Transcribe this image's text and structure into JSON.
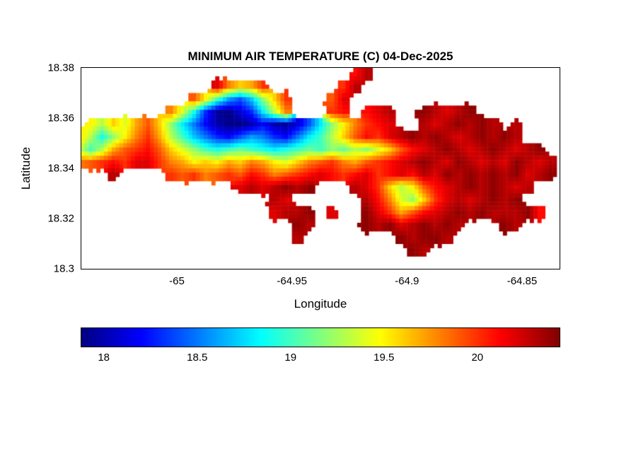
{
  "chart_data": {
    "type": "heatmap",
    "title": "MINIMUM AIR TEMPERATURE (C) 04-Dec-2025",
    "xlabel": "Longitude",
    "ylabel": "Latitude",
    "units": "C",
    "xlim": [
      -65.0415,
      -64.8337
    ],
    "ylim": [
      18.3,
      18.38
    ],
    "xticks": {
      "values": [
        -65,
        -64.95,
        -64.9,
        -64.85
      ],
      "labels": [
        "-65",
        "-64.95",
        "-64.9",
        "-64.85"
      ]
    },
    "yticks": {
      "values": [
        18.38,
        18.36,
        18.34,
        18.32,
        18.3
      ],
      "labels": [
        "18.38",
        "18.36",
        "18.34",
        "18.32",
        "18.3"
      ]
    },
    "colormap": "jet",
    "colorbar": {
      "orientation": "horizontal",
      "min": 17.88,
      "max": 20.44,
      "ticks": [
        18,
        18.5,
        19,
        19.5,
        20
      ],
      "tick_labels": [
        "18",
        "18.5",
        "19",
        "19.5",
        "20"
      ]
    },
    "grid": {
      "lon0": -65.045,
      "dlon": 0.005,
      "lat0": 18.38,
      "dlat": 0.005,
      "ncols": 42,
      "nrows": 16,
      "values": [
        [
          null,
          null,
          null,
          null,
          null,
          null,
          null,
          null,
          null,
          null,
          null,
          null,
          null,
          null,
          null,
          null,
          null,
          null,
          null,
          null,
          null,
          null,
          null,
          null,
          20.1,
          20.3,
          null,
          null,
          null,
          null,
          null,
          null,
          null,
          null,
          null,
          null,
          null,
          null,
          null,
          null,
          null,
          null
        ],
        [
          null,
          null,
          null,
          null,
          null,
          null,
          null,
          null,
          null,
          null,
          null,
          null,
          20.2,
          19.8,
          19.6,
          19.7,
          20.0,
          null,
          null,
          null,
          null,
          null,
          null,
          20.0,
          20.3,
          null,
          null,
          null,
          null,
          null,
          null,
          null,
          null,
          null,
          null,
          null,
          null,
          null,
          null,
          null,
          null,
          null
        ],
        [
          null,
          null,
          null,
          null,
          null,
          null,
          null,
          null,
          null,
          null,
          19.9,
          19.5,
          19.0,
          18.6,
          18.4,
          18.7,
          19.2,
          19.6,
          20.0,
          null,
          null,
          null,
          19.9,
          20.2,
          null,
          null,
          null,
          null,
          null,
          null,
          null,
          null,
          null,
          null,
          null,
          null,
          null,
          null,
          null,
          null,
          null,
          null
        ],
        [
          null,
          null,
          null,
          null,
          null,
          null,
          null,
          null,
          19.8,
          19.4,
          18.9,
          18.3,
          17.95,
          17.9,
          18.1,
          18.3,
          18.8,
          19.3,
          19.8,
          null,
          null,
          null,
          20.0,
          20.1,
          null,
          20.1,
          20.2,
          20.3,
          null,
          null,
          20.4,
          20.3,
          20.2,
          20.3,
          20.4,
          null,
          null,
          null,
          null,
          null,
          null,
          null
        ],
        [
          null,
          19.5,
          19.3,
          19.6,
          19.4,
          19.7,
          19.9,
          19.6,
          19.2,
          18.8,
          18.5,
          18.2,
          18.0,
          17.9,
          17.9,
          18.0,
          18.2,
          18.0,
          17.95,
          18.1,
          18.4,
          18.8,
          19.2,
          19.5,
          19.8,
          20.0,
          20.1,
          20.2,
          null,
          null,
          20.3,
          20.2,
          20.3,
          20.4,
          20.3,
          20.4,
          20.3,
          null,
          20.3,
          null,
          null,
          null
        ],
        [
          19.6,
          19.3,
          18.9,
          19.2,
          19.5,
          19.8,
          20.0,
          19.7,
          19.3,
          19.0,
          18.7,
          18.5,
          18.3,
          18.2,
          18.4,
          18.6,
          18.5,
          18.3,
          18.2,
          18.5,
          18.8,
          19.0,
          19.3,
          19.6,
          19.9,
          20.1,
          20.0,
          20.2,
          20.3,
          20.4,
          20.3,
          20.4,
          20.3,
          20.2,
          20.3,
          20.4,
          20.3,
          20.4,
          20.3,
          null,
          null,
          null
        ],
        [
          19.4,
          19.0,
          19.3,
          19.7,
          19.9,
          20.0,
          20.1,
          19.9,
          19.6,
          19.4,
          19.2,
          19.0,
          18.9,
          19.0,
          19.1,
          19.0,
          18.9,
          18.8,
          18.9,
          19.0,
          19.1,
          19.0,
          19.2,
          19.1,
          19.3,
          19.2,
          19.4,
          19.6,
          19.9,
          20.1,
          20.2,
          20.3,
          20.4,
          20.3,
          20.2,
          20.3,
          20.4,
          20.3,
          20.2,
          20.3,
          20.4,
          null
        ],
        [
          19.8,
          19.9,
          20.0,
          20.1,
          20.0,
          20.2,
          20.2,
          20.0,
          19.8,
          19.7,
          19.5,
          19.6,
          19.5,
          19.7,
          19.6,
          19.8,
          19.7,
          19.5,
          19.4,
          19.6,
          19.8,
          19.9,
          20.0,
          19.8,
          19.7,
          19.9,
          20.0,
          20.1,
          20.2,
          20.3,
          20.4,
          20.3,
          20.2,
          20.4,
          20.3,
          20.2,
          20.3,
          20.2,
          20.4,
          20.3,
          20.2,
          20.3
        ],
        [
          null,
          null,
          null,
          20.3,
          null,
          null,
          null,
          null,
          20.0,
          19.9,
          20.0,
          19.8,
          19.9,
          20.0,
          19.9,
          20.1,
          20.0,
          19.8,
          19.9,
          20.0,
          20.1,
          20.2,
          20.1,
          20.0,
          20.1,
          20.2,
          20.0,
          20.1,
          20.2,
          20.1,
          20.3,
          20.2,
          20.4,
          20.3,
          20.4,
          20.3,
          20.4,
          20.3,
          20.4,
          20.2,
          20.3,
          20.4
        ],
        [
          null,
          null,
          null,
          null,
          null,
          null,
          null,
          null,
          null,
          null,
          null,
          null,
          null,
          null,
          20.2,
          20.3,
          20.2,
          20.3,
          20.4,
          20.3,
          20.4,
          null,
          null,
          null,
          20.3,
          20.2,
          20.0,
          19.6,
          19.3,
          19.5,
          19.9,
          20.1,
          20.2,
          20.3,
          20.4,
          20.3,
          20.4,
          20.3,
          20.2,
          20.3,
          null,
          null
        ],
        [
          null,
          null,
          null,
          null,
          null,
          null,
          null,
          null,
          null,
          null,
          null,
          null,
          null,
          null,
          null,
          null,
          null,
          20.3,
          20.2,
          null,
          null,
          null,
          null,
          null,
          null,
          20.3,
          20.1,
          19.8,
          19.4,
          19.2,
          19.6,
          20.0,
          20.2,
          20.3,
          20.2,
          20.3,
          20.4,
          20.3,
          20.4,
          null,
          null,
          null
        ],
        [
          null,
          null,
          null,
          null,
          null,
          null,
          null,
          null,
          null,
          null,
          null,
          null,
          null,
          null,
          null,
          null,
          null,
          20.2,
          20.3,
          20.3,
          20.4,
          null,
          20.2,
          null,
          null,
          20.4,
          20.2,
          20.0,
          19.7,
          19.9,
          20.1,
          20.2,
          20.3,
          20.4,
          20.3,
          20.4,
          20.3,
          20.3,
          20.3,
          20.4,
          20.1,
          null
        ],
        [
          null,
          null,
          null,
          null,
          null,
          null,
          null,
          null,
          null,
          null,
          null,
          null,
          null,
          null,
          null,
          null,
          null,
          null,
          null,
          20.4,
          20.3,
          null,
          null,
          null,
          null,
          20.4,
          20.3,
          20.4,
          20.2,
          20.3,
          20.4,
          20.3,
          20.4,
          20.3,
          null,
          null,
          null,
          20.4,
          20.3,
          null,
          null,
          null
        ],
        [
          null,
          null,
          null,
          null,
          null,
          null,
          null,
          null,
          null,
          null,
          null,
          null,
          null,
          null,
          null,
          null,
          null,
          null,
          null,
          20.3,
          null,
          null,
          null,
          null,
          null,
          null,
          null,
          null,
          20.4,
          20.3,
          20.4,
          20.4,
          20.3,
          null,
          null,
          null,
          null,
          null,
          null,
          null,
          null,
          null
        ],
        [
          null,
          null,
          null,
          null,
          null,
          null,
          null,
          null,
          null,
          null,
          null,
          null,
          null,
          null,
          null,
          null,
          null,
          null,
          null,
          null,
          null,
          null,
          null,
          null,
          null,
          null,
          null,
          null,
          null,
          20.4,
          20.3,
          null,
          null,
          null,
          null,
          null,
          null,
          null,
          null,
          null,
          null,
          null
        ],
        [
          null,
          null,
          null,
          null,
          null,
          null,
          null,
          null,
          null,
          null,
          null,
          null,
          null,
          null,
          null,
          null,
          null,
          null,
          null,
          null,
          null,
          null,
          null,
          null,
          null,
          null,
          null,
          null,
          null,
          null,
          null,
          null,
          null,
          null,
          null,
          null,
          null,
          null,
          null,
          null,
          null,
          null
        ]
      ]
    }
  },
  "colors": {
    "jet_stops": [
      "#000080",
      "#0000ff",
      "#00ffff",
      "#ffff00",
      "#ff0000",
      "#800000"
    ],
    "jet_stop_positions": [
      0,
      12.5,
      37.5,
      62.5,
      87.5,
      100
    ],
    "background": "#ffffff",
    "axis": "#000000"
  }
}
